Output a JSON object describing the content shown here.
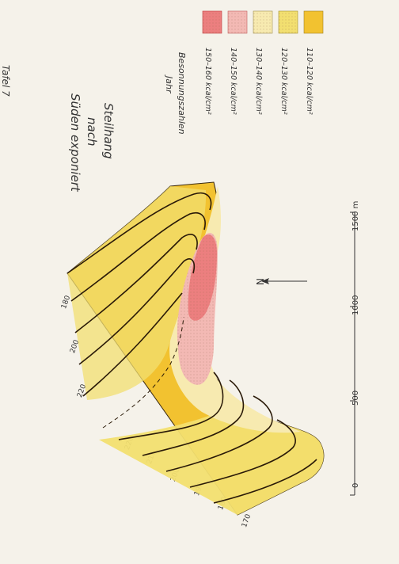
{
  "page_label": "Tafel 7",
  "title": {
    "line1": "Steilhang",
    "line2": "nach",
    "line3": "Süden exponiert"
  },
  "legend": {
    "heading_line1": "Besonnungszahlen",
    "heading_line2": "Jahr",
    "items": [
      {
        "label": "150–160 kcal/cm²",
        "color": "#ec7f7f",
        "pattern": "dots"
      },
      {
        "label": "140–150 kcal/cm²",
        "color": "#f3b9b4",
        "pattern": "dots"
      },
      {
        "label": "130–140 kcal/cm²",
        "color": "#f7eab0",
        "pattern": "dots"
      },
      {
        "label": "120–130 kcal/cm²",
        "color": "#f2df70",
        "pattern": "dots"
      },
      {
        "label": "110–120 kcal/cm²",
        "color": "#f2c230",
        "pattern": "solid"
      }
    ]
  },
  "north_label": "N",
  "scale": {
    "labels": [
      "0",
      "500",
      "1000",
      "1500 m"
    ]
  },
  "contours_upper": [
    "180",
    "200",
    "220"
  ],
  "contours_lower": [
    "220",
    "210",
    "200",
    "190",
    "180",
    "170"
  ]
}
